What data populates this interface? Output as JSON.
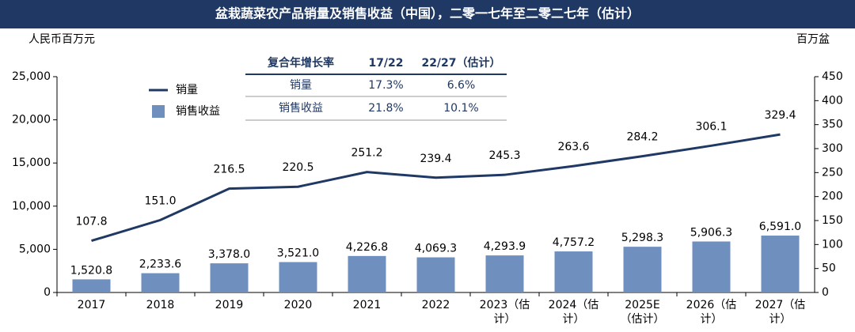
{
  "chart_data": {
    "type": "bar_line",
    "title": "盆栽蔬菜农产品销量及销售收益（中国），二零一七年至二零二七年（估计）",
    "y_label": "人民币百万元",
    "y2_label": "百万盆",
    "categories": [
      "2017",
      "2018",
      "2019",
      "2020",
      "2021",
      "2022",
      "2023（估计）",
      "2024（估计）",
      "2025E（估计）",
      "2026（估计）",
      "2027（估计）"
    ],
    "series": [
      {
        "name": "销量",
        "type": "line",
        "axis": "y2",
        "color": "#1f3864",
        "values": [
          107.8,
          151.0,
          216.5,
          220.5,
          251.2,
          239.4,
          245.3,
          263.6,
          284.2,
          306.1,
          329.4
        ],
        "value_labels": [
          "107.8",
          "151.0",
          "216.5",
          "220.5",
          "251.2",
          "239.4",
          "245.3",
          "263.6",
          "284.2",
          "306.1",
          "329.4"
        ]
      },
      {
        "name": "销售收益",
        "type": "bar",
        "color": "#6f8fbf",
        "values": [
          1520.8,
          2233.6,
          3378.0,
          3521.0,
          4226.8,
          4069.3,
          4293.9,
          4757.2,
          5298.3,
          5906.3,
          6591.0
        ],
        "value_labels": [
          "1,520.8",
          "2,233.6",
          "3,378.0",
          "3,521.0",
          "4,226.8",
          "4,069.3",
          "4,293.9",
          "4,757.2",
          "5,298.3",
          "5,906.3",
          "6,591.0"
        ]
      }
    ],
    "ylim": [
      0,
      25000
    ],
    "yticks": [
      0,
      {
        "value": 5000,
        "label": "5,000"
      },
      {
        "value": 10000,
        "label": "10,000"
      },
      {
        "value": 15000,
        "label": "15,000"
      },
      {
        "value": 20000,
        "label": "20,000"
      },
      {
        "value": 25000,
        "label": "25,000"
      }
    ],
    "y2lim": [
      0,
      450
    ],
    "y2ticks": [
      0,
      50,
      100,
      150,
      200,
      250,
      300,
      350,
      400,
      450
    ],
    "legend": "top-left",
    "grid": false
  },
  "cagr_table": {
    "header": [
      "复合年增长率",
      "17/22",
      "22/27（估计）"
    ],
    "rows": [
      [
        "销量",
        "17.3%",
        "6.6%"
      ],
      [
        "销售收益",
        "21.8%",
        "10.1%"
      ]
    ]
  }
}
